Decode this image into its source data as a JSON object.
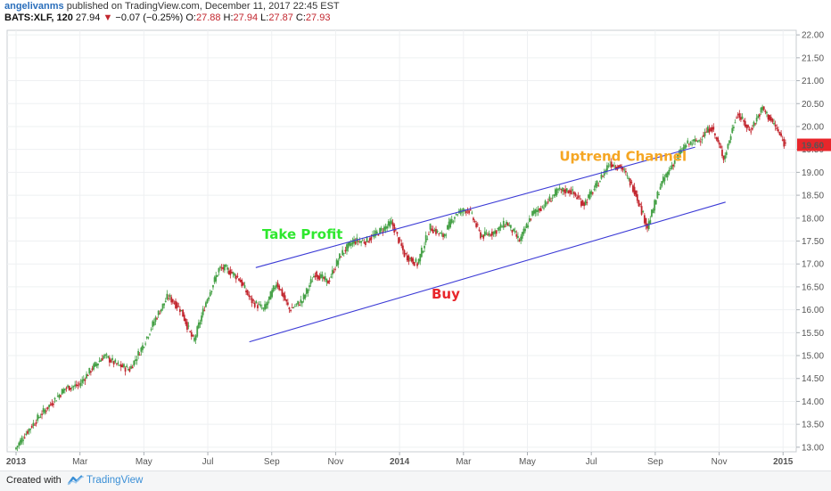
{
  "header": {
    "author": "angelivanms",
    "published": " published on TradingView.com, December 11, 2017 22:45 EST",
    "symbol": "BATS:XLF, 120",
    "last": "27.94",
    "down_glyph": "▼",
    "change": "−0.07 (−0.25%)",
    "o_label": "O:",
    "o_value": "27.88",
    "h_label": "H:",
    "h_value": "27.94",
    "l_label": "L:",
    "l_value": "27.87",
    "c_label": "C:",
    "c_value": "27.93"
  },
  "footer": {
    "created_label": "Created with",
    "brand": "TradingView"
  },
  "chart_data": {
    "type": "line",
    "ylim": [
      12.9,
      22.1
    ],
    "y_ticks": [
      "22.00",
      "21.50",
      "21.00",
      "20.50",
      "20.00",
      "19.50",
      "19.00",
      "18.50",
      "18.00",
      "17.50",
      "17.00",
      "16.50",
      "16.00",
      "15.50",
      "15.00",
      "14.50",
      "14.00",
      "13.50",
      "13.00"
    ],
    "x_ticks": [
      "2013",
      "Mar",
      "May",
      "Jul",
      "Sep",
      "Nov",
      "2014",
      "Mar",
      "May",
      "Jul",
      "Sep",
      "Nov",
      "2015"
    ],
    "current_price_label": "19.60",
    "current_price": 19.6,
    "x_range_months": [
      0,
      24.3
    ],
    "series": [
      {
        "x_months": [
          0,
          0.4,
          0.8,
          1.2,
          1.6,
          2.0,
          2.4,
          2.8,
          3.2,
          3.6,
          4.0,
          4.4,
          4.8,
          5.2,
          5.6,
          6.0,
          6.4,
          6.6,
          7.0,
          7.4,
          7.8,
          8.2,
          8.6,
          9.0,
          9.4,
          9.8,
          10.2,
          10.6,
          11.0,
          11.4,
          11.8,
          12.2,
          12.6,
          13.0,
          13.4,
          13.8,
          14.2,
          14.6,
          15.0,
          15.4,
          15.8,
          16.2,
          16.6,
          17.0,
          17.4,
          17.8,
          18.2,
          18.6,
          19.0,
          19.4,
          19.8,
          20.2,
          20.6,
          21.0,
          21.4,
          21.8,
          22.2,
          22.6,
          23.0,
          23.4,
          23.8,
          24.1
        ],
        "values": [
          12.95,
          13.35,
          13.7,
          14.0,
          14.3,
          14.35,
          14.7,
          15.0,
          14.8,
          14.7,
          15.2,
          15.8,
          16.3,
          16.0,
          15.3,
          16.2,
          16.9,
          16.9,
          16.7,
          16.2,
          16.0,
          16.6,
          16.0,
          16.2,
          16.8,
          16.6,
          17.2,
          17.5,
          17.5,
          17.7,
          17.9,
          17.2,
          17.0,
          17.8,
          17.6,
          18.1,
          18.2,
          17.6,
          17.7,
          17.9,
          17.5,
          18.1,
          18.3,
          18.6,
          18.6,
          18.3,
          18.7,
          19.2,
          19.1,
          18.6,
          17.8,
          18.7,
          19.2,
          19.6,
          19.7,
          20.0,
          19.3,
          20.3,
          19.9,
          20.4,
          20.0,
          19.6
        ]
      }
    ],
    "channel_lines": [
      {
        "name": "upper",
        "points": [
          [
            7.5,
            16.92
          ],
          [
            21.25,
            19.55
          ]
        ]
      },
      {
        "name": "lower",
        "points": [
          [
            7.3,
            15.3
          ],
          [
            22.2,
            18.35
          ]
        ]
      }
    ],
    "annotations": [
      {
        "text": "Uptrend Channel",
        "x_month": 17.0,
        "y": 19.25,
        "color": "#f5a623"
      },
      {
        "text": "Take Profit",
        "x_month": 7.7,
        "y": 17.55,
        "color": "#2ee82e"
      },
      {
        "text": "Buy",
        "x_month": 13.0,
        "y": 16.25,
        "color": "#e8262b"
      }
    ],
    "colors": {
      "up": "#46a147",
      "down": "#c2262e",
      "channel": "#3b3ad6",
      "price_tag": "#e8262b"
    }
  }
}
